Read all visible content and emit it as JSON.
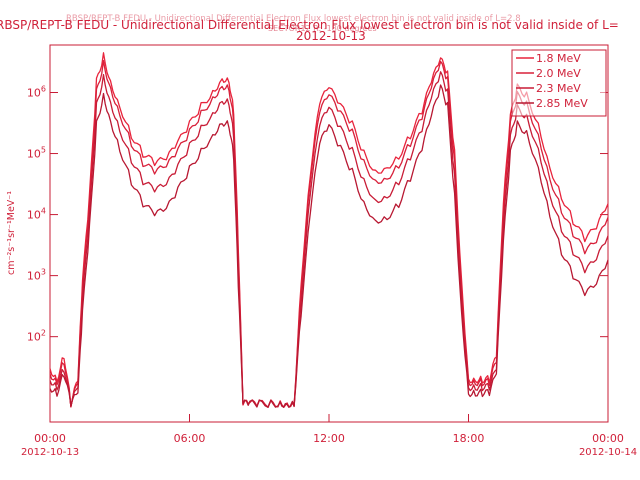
{
  "header": {
    "title_ghost": "RBSP/REPT-B FEDU - Unidirectional Differential Electron Flux lowest electron bin is not valid inside of L=2.8",
    "title": "RBSP/REPT-B FEDU - Unidirectional Differential Electron Flux lowest electron bin is not valid inside of L=",
    "subtitle_ghost": "SECTOR12 R: -180 degrees",
    "date": "2012-10-13"
  },
  "chart_data": {
    "type": "line",
    "title": "RBSP/REPT-B FEDU - Unidirectional Differential Electron Flux lowest electron bin is not valid inside of L=",
    "xlabel": "",
    "ylabel": "cm⁻²s⁻¹sr⁻¹MeV⁻¹",
    "ylog": true,
    "ylim": [
      4,
      6000000
    ],
    "xlim_hours": [
      0,
      24
    ],
    "x_ticks": [
      {
        "label": "00:00",
        "sub": "2012-10-13",
        "hour": 0
      },
      {
        "label": "06:00",
        "sub": "",
        "hour": 6
      },
      {
        "label": "12:00",
        "sub": "",
        "hour": 12
      },
      {
        "label": "18:00",
        "sub": "",
        "hour": 18
      },
      {
        "label": "00:00",
        "sub": "2012-10-14",
        "hour": 24
      }
    ],
    "y_ticks": [
      {
        "label": "10^2",
        "value": 100
      },
      {
        "label": "10^3",
        "value": 1000
      },
      {
        "label": "10^4",
        "value": 10000
      },
      {
        "label": "10^5",
        "value": 100000
      },
      {
        "label": "10^6",
        "value": 1000000
      }
    ],
    "x_hours": [
      0,
      0.3,
      0.6,
      0.9,
      1.2,
      1.4,
      1.7,
      2.0,
      2.3,
      2.6,
      3.0,
      3.5,
      4.0,
      4.5,
      5.0,
      5.5,
      6.0,
      6.5,
      7.0,
      7.4,
      7.7,
      7.9,
      8.1,
      8.3,
      8.6,
      9.0,
      9.5,
      9.9,
      10.2,
      10.5,
      10.8,
      11.2,
      11.6,
      12.0,
      12.5,
      13.0,
      13.5,
      14.0,
      14.5,
      15.0,
      15.5,
      16.0,
      16.4,
      16.8,
      17.1,
      17.4,
      17.7,
      18.0,
      18.3,
      18.6,
      18.9,
      19.2,
      19.5,
      19.8,
      20.1,
      20.5,
      21.0,
      21.5,
      22.0,
      22.5,
      23.0,
      23.5,
      24.0
    ],
    "legend": {
      "position": "top-right",
      "entries": [
        "1.8 MeV",
        "2.0 MeV",
        "2.3 MeV",
        "2.85 MeV"
      ]
    },
    "series": [
      {
        "name": "1.8 MeV",
        "color": "#e8243c",
        "values": [
          30,
          20,
          50,
          8,
          20,
          800,
          20000,
          1500000,
          4000000,
          1500000,
          600000,
          200000,
          100000,
          70000,
          80000,
          150000,
          300000,
          600000,
          1000000,
          1700000,
          1600000,
          500000,
          3000,
          8,
          8,
          8,
          8,
          8,
          8,
          8,
          800,
          50000,
          700000,
          1200000,
          600000,
          300000,
          100000,
          50000,
          60000,
          90000,
          200000,
          500000,
          1500000,
          3500000,
          2000000,
          100000,
          800,
          20,
          20,
          20,
          20,
          50,
          15000,
          400000,
          1200000,
          900000,
          300000,
          60000,
          20000,
          8000,
          4000,
          6000,
          15000
        ]
      },
      {
        "name": "2.0 MeV",
        "color": "#d8203a",
        "values": [
          25,
          18,
          40,
          8,
          18,
          600,
          15000,
          1000000,
          3000000,
          1200000,
          450000,
          150000,
          70000,
          50000,
          60000,
          110000,
          220000,
          450000,
          800000,
          1300000,
          1200000,
          350000,
          2000,
          8,
          8,
          8,
          8,
          8,
          8,
          8,
          600,
          40000,
          500000,
          900000,
          450000,
          220000,
          70000,
          35000,
          40000,
          65000,
          150000,
          400000,
          1200000,
          3000000,
          1600000,
          70000,
          600,
          18,
          18,
          18,
          18,
          40,
          10000,
          300000,
          900000,
          650000,
          200000,
          40000,
          12000,
          5000,
          2500,
          3500,
          9000
        ]
      },
      {
        "name": "2.3 MeV",
        "color": "#c81c36",
        "values": [
          20,
          15,
          30,
          8,
          15,
          400,
          10000,
          600000,
          1800000,
          700000,
          250000,
          80000,
          35000,
          25000,
          30000,
          60000,
          130000,
          260000,
          450000,
          750000,
          700000,
          200000,
          1200,
          8,
          8,
          8,
          8,
          8,
          8,
          8,
          400,
          25000,
          300000,
          550000,
          250000,
          110000,
          35000,
          17000,
          20000,
          35000,
          90000,
          250000,
          800000,
          2000000,
          1000000,
          40000,
          400,
          15,
          15,
          15,
          15,
          30,
          6000,
          180000,
          550000,
          400000,
          120000,
          22000,
          6000,
          2500,
          1200,
          1800,
          4500
        ]
      },
      {
        "name": "2.85 MeV",
        "color": "#b81832",
        "values": [
          15,
          12,
          25,
          8,
          12,
          250,
          6000,
          300000,
          900000,
          350000,
          120000,
          35000,
          15000,
          10000,
          12000,
          25000,
          55000,
          110000,
          200000,
          330000,
          300000,
          90000,
          700,
          8,
          8,
          8,
          8,
          8,
          8,
          8,
          250,
          12000,
          150000,
          280000,
          120000,
          50000,
          15000,
          8000,
          9000,
          15000,
          40000,
          120000,
          400000,
          1200000,
          600000,
          20000,
          250,
          12,
          12,
          12,
          12,
          25,
          3500,
          100000,
          300000,
          220000,
          60000,
          10000,
          2500,
          1000,
          500,
          700,
          1800
        ]
      }
    ]
  }
}
